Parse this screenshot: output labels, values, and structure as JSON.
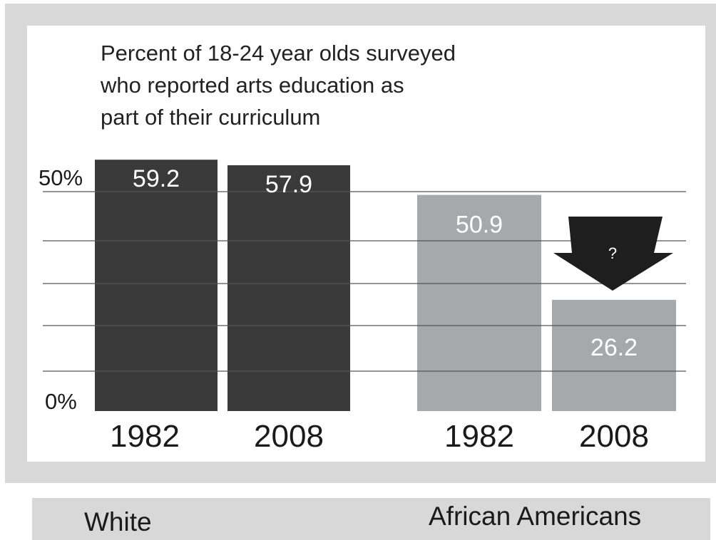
{
  "colors": {
    "frame": "#d8d8d9",
    "panel": "#ffffff",
    "white_bars": "#3a3a3a",
    "african_american_bars": "#a7a8aa",
    "arrow": "#1e1e1e",
    "gridline": "#555555"
  },
  "chart_data": {
    "type": "bar",
    "title": "Percent of 18-24 year olds surveyed who reported arts education as part of their curriculum",
    "title_lines": [
      "Percent of 18-24 year olds surveyed",
      "who reported arts education as",
      "part of their curriculum"
    ],
    "y_tick_labels": [
      "50%",
      "0%"
    ],
    "ylim": [
      0,
      70
    ],
    "grid": true,
    "groups": [
      {
        "name": "White",
        "bars": [
          {
            "year": "1982",
            "value": 59.2,
            "label": "59.2"
          },
          {
            "year": "2008",
            "value": 57.9,
            "label": "57.9"
          }
        ]
      },
      {
        "name": "African Americans",
        "bars": [
          {
            "year": "1982",
            "value": 50.9,
            "label": "50.9"
          },
          {
            "year": "2008",
            "value": 26.2,
            "label": "26.2"
          }
        ]
      }
    ],
    "annotation": {
      "text": "?",
      "icon": "down-arrow-icon"
    }
  }
}
